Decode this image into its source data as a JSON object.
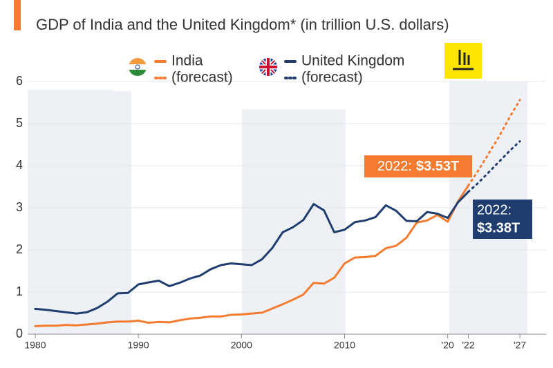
{
  "chart_data": {
    "type": "line",
    "subtitle": "GDP of India and the United Kingdom* (in trillion U.S. dollars)",
    "x": [
      1980,
      1981,
      1982,
      1983,
      1984,
      1985,
      1986,
      1987,
      1988,
      1989,
      1990,
      1991,
      1992,
      1993,
      1994,
      1995,
      1996,
      1997,
      1998,
      1999,
      2000,
      2001,
      2002,
      2003,
      2004,
      2005,
      2006,
      2007,
      2008,
      2009,
      2010,
      2011,
      2012,
      2013,
      2014,
      2015,
      2016,
      2017,
      2018,
      2019,
      2020,
      2021,
      2022,
      2023,
      2024,
      2025,
      2026,
      2027
    ],
    "series": [
      {
        "name": "India",
        "color": "#f47b30",
        "dashed": false,
        "values": [
          0.19,
          0.2,
          0.2,
          0.22,
          0.21,
          0.23,
          0.25,
          0.28,
          0.3,
          0.3,
          0.32,
          0.27,
          0.29,
          0.28,
          0.33,
          0.37,
          0.39,
          0.42,
          0.42,
          0.46,
          0.47,
          0.49,
          0.51,
          0.61,
          0.71,
          0.82,
          0.94,
          1.22,
          1.2,
          1.34,
          1.68,
          1.82,
          1.83,
          1.86,
          2.04,
          2.1,
          2.29,
          2.65,
          2.7,
          2.83,
          2.67,
          3.15,
          3.53,
          null,
          null,
          null,
          null,
          null
        ]
      },
      {
        "name": "(forecast)",
        "color": "#f47b30",
        "dashed": true,
        "values": [
          null,
          null,
          null,
          null,
          null,
          null,
          null,
          null,
          null,
          null,
          null,
          null,
          null,
          null,
          null,
          null,
          null,
          null,
          null,
          null,
          null,
          null,
          null,
          null,
          null,
          null,
          null,
          null,
          null,
          null,
          null,
          null,
          null,
          null,
          null,
          null,
          null,
          null,
          null,
          null,
          null,
          null,
          3.53,
          3.9,
          4.3,
          4.7,
          5.15,
          5.56
        ]
      },
      {
        "name": "United Kingdom",
        "color": "#1f3d6e",
        "dashed": false,
        "values": [
          0.6,
          0.58,
          0.55,
          0.52,
          0.49,
          0.52,
          0.62,
          0.77,
          0.97,
          0.98,
          1.18,
          1.23,
          1.27,
          1.14,
          1.22,
          1.32,
          1.39,
          1.54,
          1.64,
          1.68,
          1.66,
          1.64,
          1.78,
          2.05,
          2.42,
          2.54,
          2.71,
          3.09,
          2.94,
          2.42,
          2.48,
          2.66,
          2.7,
          2.78,
          3.06,
          2.93,
          2.69,
          2.68,
          2.9,
          2.86,
          2.76,
          3.13,
          3.38,
          null,
          null,
          null,
          null,
          null
        ]
      },
      {
        "name": "(forecast)",
        "color": "#1f3d6e",
        "dashed": true,
        "values": [
          null,
          null,
          null,
          null,
          null,
          null,
          null,
          null,
          null,
          null,
          null,
          null,
          null,
          null,
          null,
          null,
          null,
          null,
          null,
          null,
          null,
          null,
          null,
          null,
          null,
          null,
          null,
          null,
          null,
          null,
          null,
          null,
          null,
          null,
          null,
          null,
          null,
          null,
          null,
          null,
          null,
          null,
          3.38,
          3.6,
          3.85,
          4.1,
          4.35,
          4.58
        ]
      }
    ],
    "xlim": [
      1979.4,
      2028.2
    ],
    "xticks": [
      1980,
      1990,
      2000,
      2010,
      {
        "value": 2020,
        "label": "'20"
      },
      {
        "value": 2022,
        "label": "'22"
      },
      {
        "value": 2027,
        "label": "'27"
      }
    ],
    "ylim": [
      0,
      6
    ],
    "yticks": [
      0,
      1,
      2,
      3,
      4,
      5,
      6
    ],
    "annotations": [
      {
        "label": "2022:",
        "value": "$3.53T",
        "color": "#f47b30"
      },
      {
        "label": "2022:",
        "value": "$3.38T",
        "color": "#1f3d6e"
      }
    ]
  }
}
